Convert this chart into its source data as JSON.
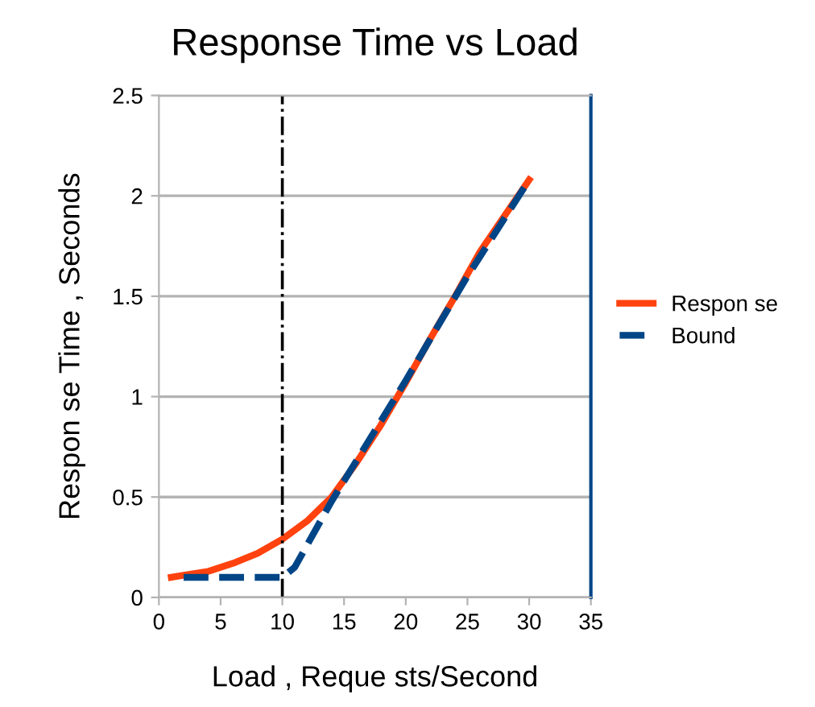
{
  "chart_data": {
    "type": "line",
    "title": "Response Time vs Load",
    "xlabel": "Load , Reque sts/Second",
    "ylabel": "Respon se Time , Seconds",
    "xlim": [
      0,
      35
    ],
    "xticks": [
      0,
      5,
      10,
      15,
      20,
      25,
      30,
      35
    ],
    "ylim": [
      0,
      2.5
    ],
    "yticks": [
      0,
      0.5,
      1,
      1.5,
      2,
      2.5
    ],
    "grid": "y",
    "legend": "right",
    "ref_lines": [
      {
        "axis": "x",
        "value": 10,
        "color": "#000000",
        "line_style": "dashdot"
      }
    ],
    "series": [
      {
        "name": "Respon se",
        "color": "#ff420e",
        "line_style": "solid",
        "x": [
          1,
          2,
          4,
          6,
          8,
          10,
          12,
          14,
          16,
          18,
          20,
          22,
          24,
          26,
          28,
          30
        ],
        "values": [
          0.1,
          0.11,
          0.13,
          0.17,
          0.22,
          0.29,
          0.38,
          0.5,
          0.67,
          0.86,
          1.07,
          1.29,
          1.5,
          1.72,
          1.9,
          2.08
        ]
      },
      {
        "name": "Bound",
        "color": "#004586",
        "line_style": "dashed",
        "x": [
          2,
          10,
          11,
          12,
          13,
          14,
          16,
          18,
          20,
          25,
          30
        ],
        "values": [
          0.1,
          0.1,
          0.15,
          0.26,
          0.37,
          0.48,
          0.68,
          0.88,
          1.08,
          1.6,
          2.08
        ]
      }
    ]
  }
}
